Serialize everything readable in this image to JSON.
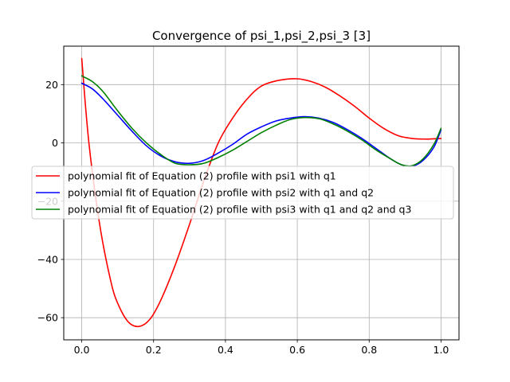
{
  "chart_data": {
    "type": "line",
    "title": "Convergence of psi_1,psi_2,psi_3 [3]",
    "xlabel": "",
    "ylabel": "",
    "xlim": [
      -0.05,
      1.05
    ],
    "ylim": [
      -67.6,
      33.2
    ],
    "x_ticks": [
      0.0,
      0.2,
      0.4,
      0.6,
      0.8,
      1.0
    ],
    "x_tick_labels": [
      "0.0",
      "0.2",
      "0.4",
      "0.6",
      "0.8",
      "1.0"
    ],
    "y_ticks": [
      -60,
      -40,
      -20,
      0,
      20
    ],
    "y_tick_labels": [
      "−60",
      "−40",
      "−20",
      "0",
      "20"
    ],
    "grid": true,
    "legend_position": "center-left",
    "series": [
      {
        "name": "polynomial fit of Equation (2) profile with psi1 with q1",
        "color": "#ff0000",
        "x": [
          0.0,
          0.02,
          0.05,
          0.08,
          0.1,
          0.13,
          0.16,
          0.19,
          0.22,
          0.26,
          0.3,
          0.34,
          0.38,
          0.42,
          0.46,
          0.5,
          0.55,
          0.6,
          0.64,
          0.68,
          0.72,
          0.76,
          0.8,
          0.84,
          0.88,
          0.92,
          0.96,
          0.98,
          1.0
        ],
        "y": [
          29,
          0,
          -28,
          -47,
          -55,
          -61.5,
          -63,
          -60.5,
          -54,
          -42,
          -28,
          -13,
          0,
          8.5,
          15,
          19.5,
          21.5,
          22,
          21,
          19,
          16,
          12.5,
          8.5,
          5,
          2.5,
          1.5,
          1.3,
          1.4,
          1.5
        ]
      },
      {
        "name": "polynomial fit of Equation (2) profile with psi2 with q1 and q2",
        "color": "#0000ff",
        "x": [
          0.0,
          0.03,
          0.06,
          0.1,
          0.14,
          0.18,
          0.22,
          0.26,
          0.3,
          0.34,
          0.38,
          0.42,
          0.46,
          0.5,
          0.54,
          0.58,
          0.62,
          0.66,
          0.7,
          0.74,
          0.78,
          0.82,
          0.86,
          0.89,
          0.92,
          0.95,
          0.98,
          1.0
        ],
        "y": [
          20.5,
          18.5,
          15,
          9.5,
          4,
          -1,
          -4.5,
          -6.5,
          -7,
          -6,
          -3.5,
          -0.5,
          3,
          5.5,
          7.5,
          8.5,
          9,
          8.5,
          7,
          4.5,
          1.5,
          -2,
          -5.5,
          -7.5,
          -8,
          -6,
          -1.5,
          4.5
        ]
      },
      {
        "name": "polynomial fit of Equation (2) profile with psi3 with q1 and q2 and q3",
        "color": "#008000",
        "x": [
          0.0,
          0.03,
          0.06,
          0.1,
          0.14,
          0.18,
          0.22,
          0.26,
          0.3,
          0.34,
          0.38,
          0.42,
          0.46,
          0.5,
          0.54,
          0.58,
          0.62,
          0.66,
          0.7,
          0.74,
          0.78,
          0.82,
          0.86,
          0.89,
          0.92,
          0.95,
          0.98,
          1.0
        ],
        "y": [
          23,
          21,
          17.5,
          11,
          5,
          0,
          -4,
          -7,
          -7.5,
          -7,
          -5,
          -2.5,
          0.5,
          3.5,
          6,
          8,
          8.7,
          8.3,
          6.5,
          4,
          1,
          -2.5,
          -5.5,
          -7.5,
          -7.8,
          -5.5,
          -0.5,
          5
        ]
      }
    ]
  }
}
